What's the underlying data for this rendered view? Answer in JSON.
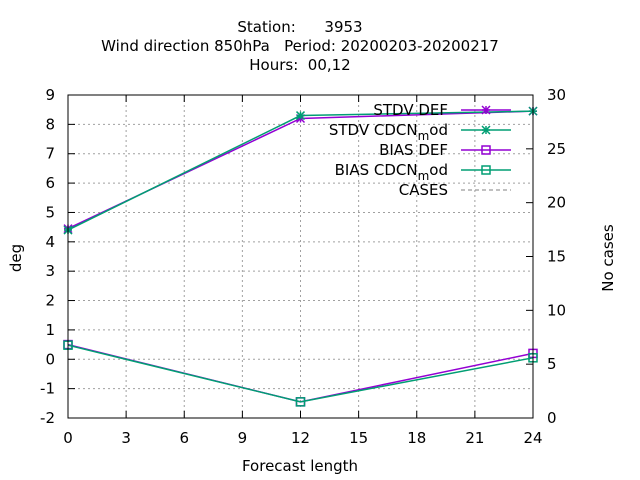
{
  "chart_data": {
    "type": "line",
    "title_lines": [
      "Station:      3953",
      "Wind direction 850hPa   Period: 20200203-20200217",
      "Hours:  00,12"
    ],
    "xlabel": "Forecast length",
    "ylabel": "deg",
    "y2label": "No cases",
    "xlim": [
      0,
      24
    ],
    "ylim": [
      -2,
      9
    ],
    "y2lim": [
      0,
      30
    ],
    "xticks": [
      0,
      3,
      6,
      9,
      12,
      15,
      18,
      21,
      24
    ],
    "yticks": [
      -2,
      -1,
      0,
      1,
      2,
      3,
      4,
      5,
      6,
      7,
      8,
      9
    ],
    "y2ticks": [
      0,
      5,
      10,
      15,
      20,
      25,
      30
    ],
    "grid": true,
    "legend_position": "top-right",
    "x": [
      0,
      12,
      24
    ],
    "series": [
      {
        "name": "STDV DEF",
        "axis": "y",
        "color": "#9400d3",
        "marker": "x",
        "dash": false,
        "values": [
          4.45,
          8.2,
          8.45
        ]
      },
      {
        "name": "STDV CDCN_mod",
        "axis": "y",
        "color": "#009e73",
        "marker": "x",
        "dash": false,
        "values": [
          4.4,
          8.3,
          8.45
        ]
      },
      {
        "name": "BIAS DEF",
        "axis": "y",
        "color": "#9400d3",
        "marker": "square",
        "dash": false,
        "values": [
          0.5,
          -1.45,
          0.2
        ]
      },
      {
        "name": "BIAS CDCN_mod",
        "axis": "y",
        "color": "#009e73",
        "marker": "square",
        "dash": false,
        "values": [
          0.48,
          -1.45,
          0.05
        ]
      },
      {
        "name": "CASES",
        "axis": "y2",
        "color": "#808080",
        "marker": "none",
        "dash": true,
        "values": [
          30,
          30,
          30
        ]
      }
    ]
  }
}
